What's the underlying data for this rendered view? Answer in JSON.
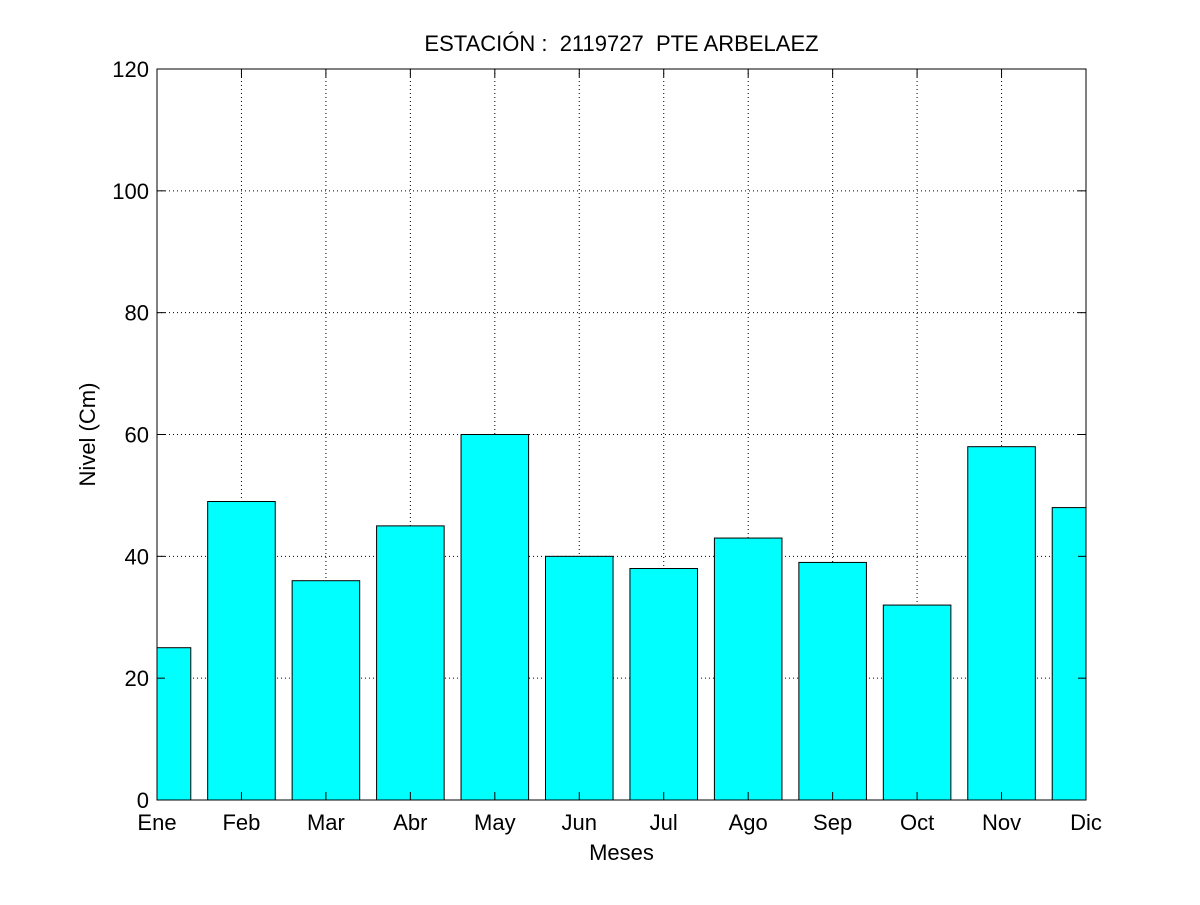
{
  "chart_data": {
    "type": "bar",
    "title": "ESTACIÓN :  2119727  PTE ARBELAEZ",
    "xlabel": "Meses",
    "ylabel": "Nivel (Cm)",
    "categories": [
      "Ene",
      "Feb",
      "Mar",
      "Abr",
      "May",
      "Jun",
      "Jul",
      "Ago",
      "Sep",
      "Oct",
      "Nov",
      "Dic"
    ],
    "values": [
      25,
      49,
      36,
      45,
      60,
      40,
      38,
      43,
      39,
      32,
      58,
      48
    ],
    "ylim": [
      0,
      120
    ],
    "yticks": [
      0,
      20,
      40,
      60,
      80,
      100,
      120
    ],
    "grid": true,
    "bar_color": "#00FFFF",
    "edge_color": "#000000"
  }
}
